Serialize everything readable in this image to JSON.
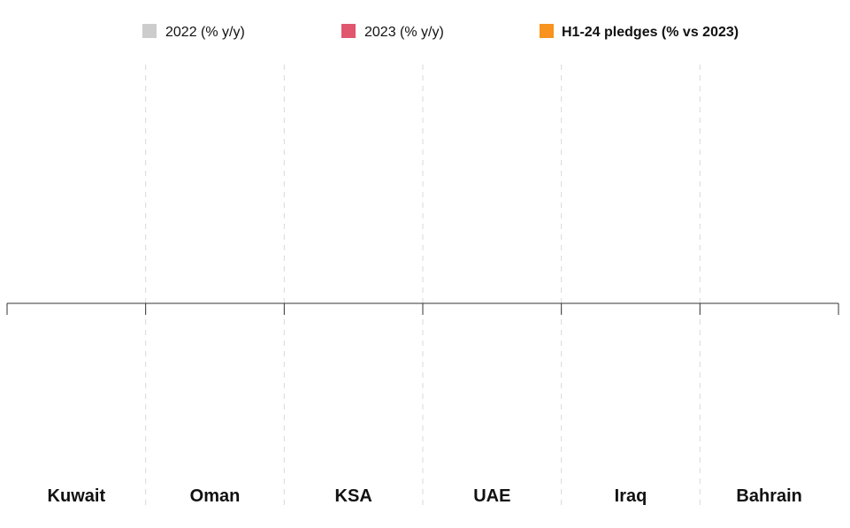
{
  "chart_data": {
    "type": "bar",
    "categories": [
      "Kuwait",
      "Oman",
      "KSA",
      "UAE",
      "Iraq",
      "Bahrain"
    ],
    "series": [
      {
        "name": "2022 (% y/y)",
        "color": "#cccccc",
        "values": [
          null,
          null,
          null,
          null,
          null,
          null
        ]
      },
      {
        "name": "2023 (% y/y)",
        "color": "#e0566e",
        "values": [
          null,
          null,
          null,
          null,
          null,
          null
        ]
      },
      {
        "name": "H1-24 pledges (% vs 2023)",
        "color": "#f7931e",
        "values": [
          null,
          null,
          null,
          null,
          null,
          null
        ]
      }
    ],
    "grid": "vertical-dashed",
    "legend_position": "top",
    "baseline": 0
  }
}
